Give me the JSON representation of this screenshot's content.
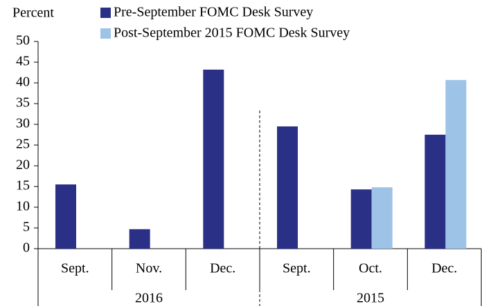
{
  "chart_data": {
    "type": "bar",
    "y_label": "Percent",
    "groups": [
      {
        "name": "2016",
        "categories": [
          "Sept.",
          "Nov.",
          "Dec."
        ]
      },
      {
        "name": "2015",
        "categories": [
          "Sept.",
          "Oct.",
          "Dec."
        ]
      }
    ],
    "series": [
      {
        "name": "Pre-September FOMC Desk Survey",
        "color": "#2b3087",
        "values": [
          15.5,
          4.7,
          43.2,
          29.5,
          14.3,
          27.5
        ]
      },
      {
        "name": "Post-September 2015 FOMC Desk Survey",
        "color": "#9dc3e6",
        "values": [
          null,
          null,
          null,
          null,
          14.8,
          40.7
        ]
      }
    ],
    "ylim": [
      0,
      50
    ],
    "yticks": [
      0,
      5,
      10,
      15,
      20,
      25,
      30,
      35,
      40,
      45,
      50
    ]
  }
}
